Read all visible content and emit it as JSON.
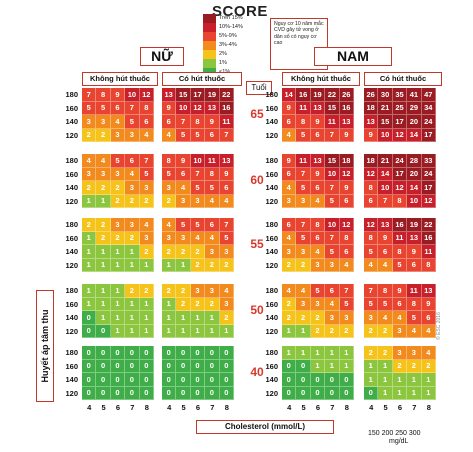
{
  "title": "SCORE",
  "legend": [
    {
      "label": "Trên 15%",
      "color": "#9b1b22"
    },
    {
      "label": "10%-14%",
      "color": "#c8202a"
    },
    {
      "label": "5%-9%",
      "color": "#e8442f"
    },
    {
      "label": "3%-4%",
      "color": "#f28a1e"
    },
    {
      "label": "2%",
      "color": "#f6c31b"
    },
    {
      "label": "1%",
      "color": "#8cc63f"
    },
    {
      "label": "<1%",
      "color": "#3fae49"
    }
  ],
  "legend_note": "Nguy cơ 10 năm mắc CVD gây tử vong ở dân số có nguy cơ cao",
  "panels": {
    "female_label": "NỮ",
    "male_label": "NAM",
    "non_smoker": "Không hút thuốc",
    "smoker": "Có hút thuốc",
    "age_header": "Tuổi"
  },
  "axis": {
    "x_label": "Cholesterol (mmol/L)",
    "y_label": "Huyết áp tâm thu",
    "x_ticks": [
      "4",
      "5",
      "6",
      "7",
      "8"
    ],
    "bp_ticks": [
      "180",
      "160",
      "140",
      "120"
    ],
    "mg_ticks": "150 200 250 300",
    "mg_unit": "mg/dL"
  },
  "watermark": "© ESC 2016",
  "chart_data": {
    "type": "heatmap",
    "title": "SCORE",
    "xlabel": "Cholesterol (mmol/L)",
    "ylabel": "Huyết áp tâm thu",
    "cholesterol": [
      4,
      5,
      6,
      7,
      8
    ],
    "systolic_bp": [
      180,
      160,
      140,
      120
    ],
    "age_groups": [
      {
        "age": "65",
        "female_non_smoker": [
          [
            7,
            8,
            9,
            10,
            12
          ],
          [
            5,
            5,
            6,
            7,
            8
          ],
          [
            3,
            3,
            4,
            5,
            6
          ],
          [
            2,
            2,
            3,
            3,
            4
          ]
        ],
        "female_smoker": [
          [
            13,
            15,
            17,
            19,
            22
          ],
          [
            9,
            10,
            12,
            13,
            16
          ],
          [
            6,
            7,
            8,
            9,
            11
          ],
          [
            4,
            5,
            5,
            6,
            7
          ]
        ],
        "male_non_smoker": [
          [
            14,
            16,
            19,
            22,
            26
          ],
          [
            9,
            11,
            13,
            15,
            16
          ],
          [
            6,
            8,
            9,
            11,
            13
          ],
          [
            4,
            5,
            6,
            7,
            9
          ]
        ],
        "male_smoker": [
          [
            26,
            30,
            35,
            41,
            47
          ],
          [
            18,
            21,
            25,
            29,
            34
          ],
          [
            13,
            15,
            17,
            20,
            24
          ],
          [
            9,
            10,
            12,
            14,
            17
          ]
        ]
      },
      {
        "age": "60",
        "female_non_smoker": [
          [
            4,
            4,
            5,
            6,
            7
          ],
          [
            3,
            3,
            3,
            4,
            5
          ],
          [
            2,
            2,
            2,
            3,
            3
          ],
          [
            1,
            1,
            2,
            2,
            2
          ]
        ],
        "female_smoker": [
          [
            8,
            9,
            10,
            11,
            13
          ],
          [
            5,
            6,
            7,
            8,
            9
          ],
          [
            3,
            4,
            5,
            5,
            6
          ],
          [
            2,
            3,
            3,
            4,
            4
          ]
        ],
        "male_non_smoker": [
          [
            9,
            11,
            13,
            15,
            18
          ],
          [
            6,
            7,
            9,
            10,
            12
          ],
          [
            4,
            5,
            6,
            7,
            9
          ],
          [
            3,
            3,
            4,
            5,
            6
          ]
        ],
        "male_smoker": [
          [
            18,
            21,
            24,
            28,
            33
          ],
          [
            12,
            14,
            17,
            20,
            24
          ],
          [
            8,
            10,
            12,
            14,
            17
          ],
          [
            6,
            7,
            8,
            10,
            12
          ]
        ]
      },
      {
        "age": "55",
        "female_non_smoker": [
          [
            2,
            2,
            3,
            3,
            4
          ],
          [
            1,
            2,
            2,
            2,
            3
          ],
          [
            1,
            1,
            1,
            1,
            2
          ],
          [
            1,
            1,
            1,
            1,
            1
          ]
        ],
        "female_smoker": [
          [
            4,
            5,
            5,
            6,
            7
          ],
          [
            3,
            3,
            4,
            4,
            5
          ],
          [
            2,
            2,
            2,
            3,
            3
          ],
          [
            1,
            1,
            2,
            2,
            2
          ]
        ],
        "male_non_smoker": [
          [
            6,
            7,
            8,
            10,
            12
          ],
          [
            4,
            5,
            6,
            7,
            8
          ],
          [
            3,
            3,
            4,
            5,
            6
          ],
          [
            2,
            2,
            3,
            3,
            4
          ]
        ],
        "male_smoker": [
          [
            12,
            13,
            16,
            19,
            22
          ],
          [
            8,
            9,
            11,
            13,
            16
          ],
          [
            5,
            6,
            8,
            9,
            11
          ],
          [
            4,
            4,
            5,
            6,
            8
          ]
        ]
      },
      {
        "age": "50",
        "female_non_smoker": [
          [
            1,
            1,
            1,
            2,
            2
          ],
          [
            1,
            1,
            1,
            1,
            1
          ],
          [
            0,
            1,
            1,
            1,
            1
          ],
          [
            0,
            0,
            1,
            1,
            1
          ]
        ],
        "female_smoker": [
          [
            2,
            2,
            3,
            3,
            4
          ],
          [
            1,
            2,
            2,
            2,
            3
          ],
          [
            1,
            1,
            1,
            1,
            2
          ],
          [
            1,
            1,
            1,
            1,
            1
          ]
        ],
        "male_non_smoker": [
          [
            4,
            4,
            5,
            6,
            7
          ],
          [
            2,
            3,
            3,
            4,
            5
          ],
          [
            2,
            2,
            2,
            3,
            3
          ],
          [
            1,
            1,
            2,
            2,
            2
          ]
        ],
        "male_smoker": [
          [
            7,
            8,
            9,
            11,
            13
          ],
          [
            5,
            5,
            6,
            8,
            9
          ],
          [
            3,
            4,
            4,
            5,
            6
          ],
          [
            2,
            2,
            3,
            4,
            4
          ]
        ]
      },
      {
        "age": "40",
        "female_non_smoker": [
          [
            0,
            0,
            0,
            0,
            0
          ],
          [
            0,
            0,
            0,
            0,
            0
          ],
          [
            0,
            0,
            0,
            0,
            0
          ],
          [
            0,
            0,
            0,
            0,
            0
          ]
        ],
        "female_smoker": [
          [
            0,
            0,
            0,
            0,
            0
          ],
          [
            0,
            0,
            0,
            0,
            0
          ],
          [
            0,
            0,
            0,
            0,
            0
          ],
          [
            0,
            0,
            0,
            0,
            0
          ]
        ],
        "male_non_smoker": [
          [
            1,
            1,
            1,
            1,
            1
          ],
          [
            0,
            0,
            1,
            1,
            1
          ],
          [
            0,
            0,
            0,
            0,
            0
          ],
          [
            0,
            0,
            0,
            0,
            0
          ]
        ],
        "male_smoker": [
          [
            2,
            2,
            3,
            3,
            4
          ],
          [
            1,
            1,
            2,
            2,
            2
          ],
          [
            1,
            1,
            1,
            1,
            1
          ],
          [
            0,
            1,
            1,
            1,
            1
          ]
        ]
      }
    ]
  }
}
